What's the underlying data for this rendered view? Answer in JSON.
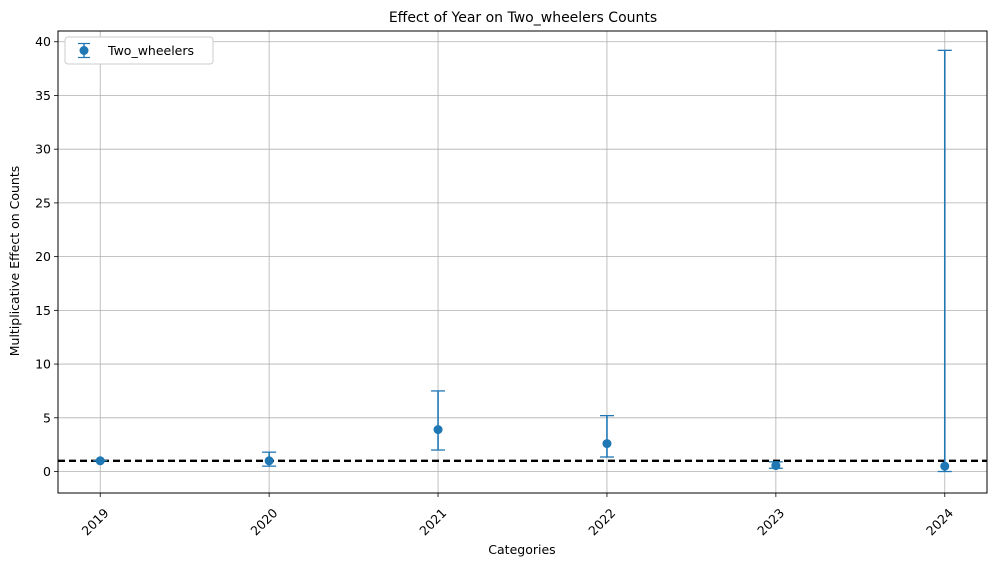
{
  "chart_data": {
    "type": "scatter",
    "title": "Effect of Year on Two_wheelers Counts",
    "xlabel": "Categories",
    "ylabel": "Multiplicative Effect on Counts",
    "categories": [
      "2019",
      "2020",
      "2021",
      "2022",
      "2023",
      "2024"
    ],
    "ylim": [
      -2,
      41
    ],
    "yticks": [
      0,
      5,
      10,
      15,
      20,
      25,
      30,
      35,
      40
    ],
    "reference_line": 1,
    "grid": true,
    "legend_position": "top-left",
    "series": [
      {
        "name": "Two_wheelers",
        "color": "#1f77b4",
        "values": [
          1.0,
          1.0,
          3.9,
          2.6,
          0.55,
          0.5
        ],
        "lower": [
          1.0,
          0.5,
          2.0,
          1.35,
          0.3,
          0.0
        ],
        "upper": [
          1.0,
          1.8,
          7.5,
          5.2,
          0.9,
          39.2
        ]
      }
    ]
  }
}
